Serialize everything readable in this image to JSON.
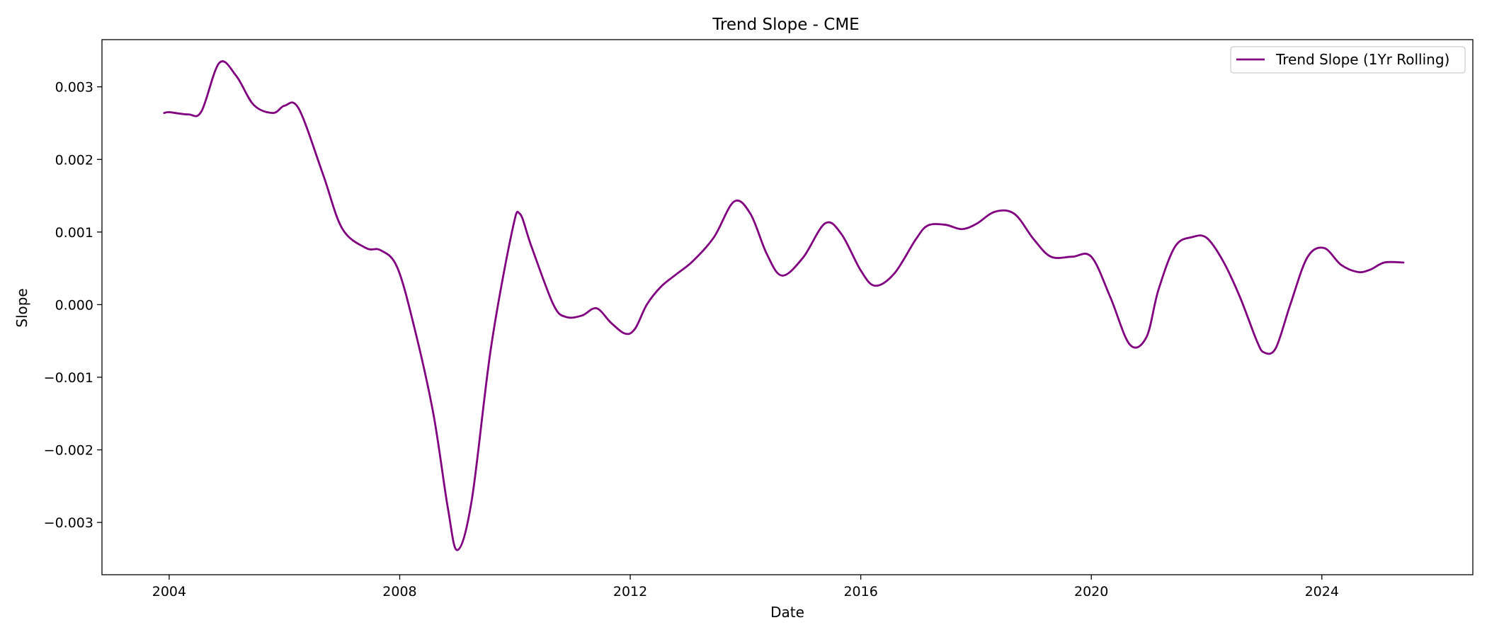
{
  "chart_data": {
    "type": "line",
    "title": "Trend Slope - CME",
    "xlabel": "Date",
    "ylabel": "Slope",
    "xlim": [
      "2002-11-01",
      "2026-08-15"
    ],
    "ylim": [
      -0.00372,
      0.00365
    ],
    "x_ticks": [
      "2004-01-01",
      "2008-01-01",
      "2012-01-01",
      "2016-01-01",
      "2020-01-01",
      "2024-01-01"
    ],
    "x_tick_labels": [
      "2004",
      "2008",
      "2012",
      "2016",
      "2020",
      "2024"
    ],
    "y_ticks": [
      -0.003,
      -0.002,
      -0.001,
      0.0,
      0.001,
      0.002,
      0.003
    ],
    "y_tick_labels": [
      "−0.003",
      "−0.002",
      "−0.001",
      "0.000",
      "0.001",
      "0.002",
      "0.003"
    ],
    "grid": false,
    "legend_position": "top-right",
    "series": [
      {
        "name": "Trend Slope (1Yr Rolling)",
        "color": "#800080",
        "x": [
          "2003-11-30",
          "2004-01-04",
          "2004-05-01",
          "2004-07-23",
          "2004-11-14",
          "2005-03-01",
          "2005-06-20",
          "2005-10-20",
          "2006-01-01",
          "2006-04-01",
          "2006-09-01",
          "2007-01-01",
          "2007-06-01",
          "2007-09-01",
          "2007-12-15",
          "2008-04-01",
          "2008-08-01",
          "2008-11-01",
          "2009-01-01",
          "2009-04-01",
          "2009-08-01",
          "2009-12-15",
          "2010-02-01",
          "2010-04-15",
          "2010-09-01",
          "2010-11-20",
          "2011-03-01",
          "2011-06-01",
          "2011-09-01",
          "2011-12-01",
          "2012-02-01",
          "2012-04-15",
          "2012-07-15",
          "2012-10-20",
          "2013-02-01",
          "2013-06-15",
          "2013-10-20",
          "2014-02-01",
          "2014-05-15",
          "2014-08-20",
          "2015-01-01",
          "2015-05-20",
          "2015-09-01",
          "2016-01-01",
          "2016-04-01",
          "2016-08-01",
          "2016-12-15",
          "2017-03-01",
          "2017-06-20",
          "2017-10-01",
          "2018-01-01",
          "2018-05-01",
          "2018-09-01",
          "2019-01-01",
          "2019-04-20",
          "2019-09-01",
          "2020-01-01",
          "2020-05-01",
          "2020-09-01",
          "2020-12-15",
          "2021-03-01",
          "2021-06-15",
          "2021-10-01",
          "2022-01-01",
          "2022-04-15",
          "2022-08-01",
          "2022-11-15",
          "2023-01-01",
          "2023-03-15",
          "2023-06-15",
          "2023-10-01",
          "2024-01-15",
          "2024-05-01",
          "2024-08-15",
          "2024-11-01",
          "2025-02-01",
          "2025-06-01"
        ],
        "y": [
          0.00264,
          0.00265,
          0.00262,
          0.00266,
          0.00333,
          0.00315,
          0.00275,
          0.00264,
          0.00274,
          0.0027,
          0.0018,
          0.00105,
          0.00078,
          0.00075,
          0.00052,
          -0.0003,
          -0.0015,
          -0.0028,
          -0.00338,
          -0.0027,
          -0.0006,
          0.00103,
          0.00125,
          0.0008,
          0.0,
          -0.00017,
          -0.00015,
          -5e-05,
          -0.00025,
          -0.0004,
          -0.00033,
          0.0,
          0.00025,
          0.00042,
          0.0006,
          0.00093,
          0.00142,
          0.00125,
          0.0007,
          0.0004,
          0.00065,
          0.00112,
          0.00097,
          0.00047,
          0.00026,
          0.00043,
          0.0009,
          0.00109,
          0.0011,
          0.00104,
          0.00111,
          0.00128,
          0.00125,
          0.0009,
          0.00066,
          0.00066,
          0.00066,
          0.0001,
          -0.00055,
          -0.00045,
          0.0002,
          0.0008,
          0.00093,
          0.00092,
          0.0006,
          0.0001,
          -0.0005,
          -0.00066,
          -0.0006,
          0.0,
          0.00065,
          0.00078,
          0.00055,
          0.00045,
          0.00048,
          0.00058,
          0.00058
        ]
      }
    ]
  }
}
